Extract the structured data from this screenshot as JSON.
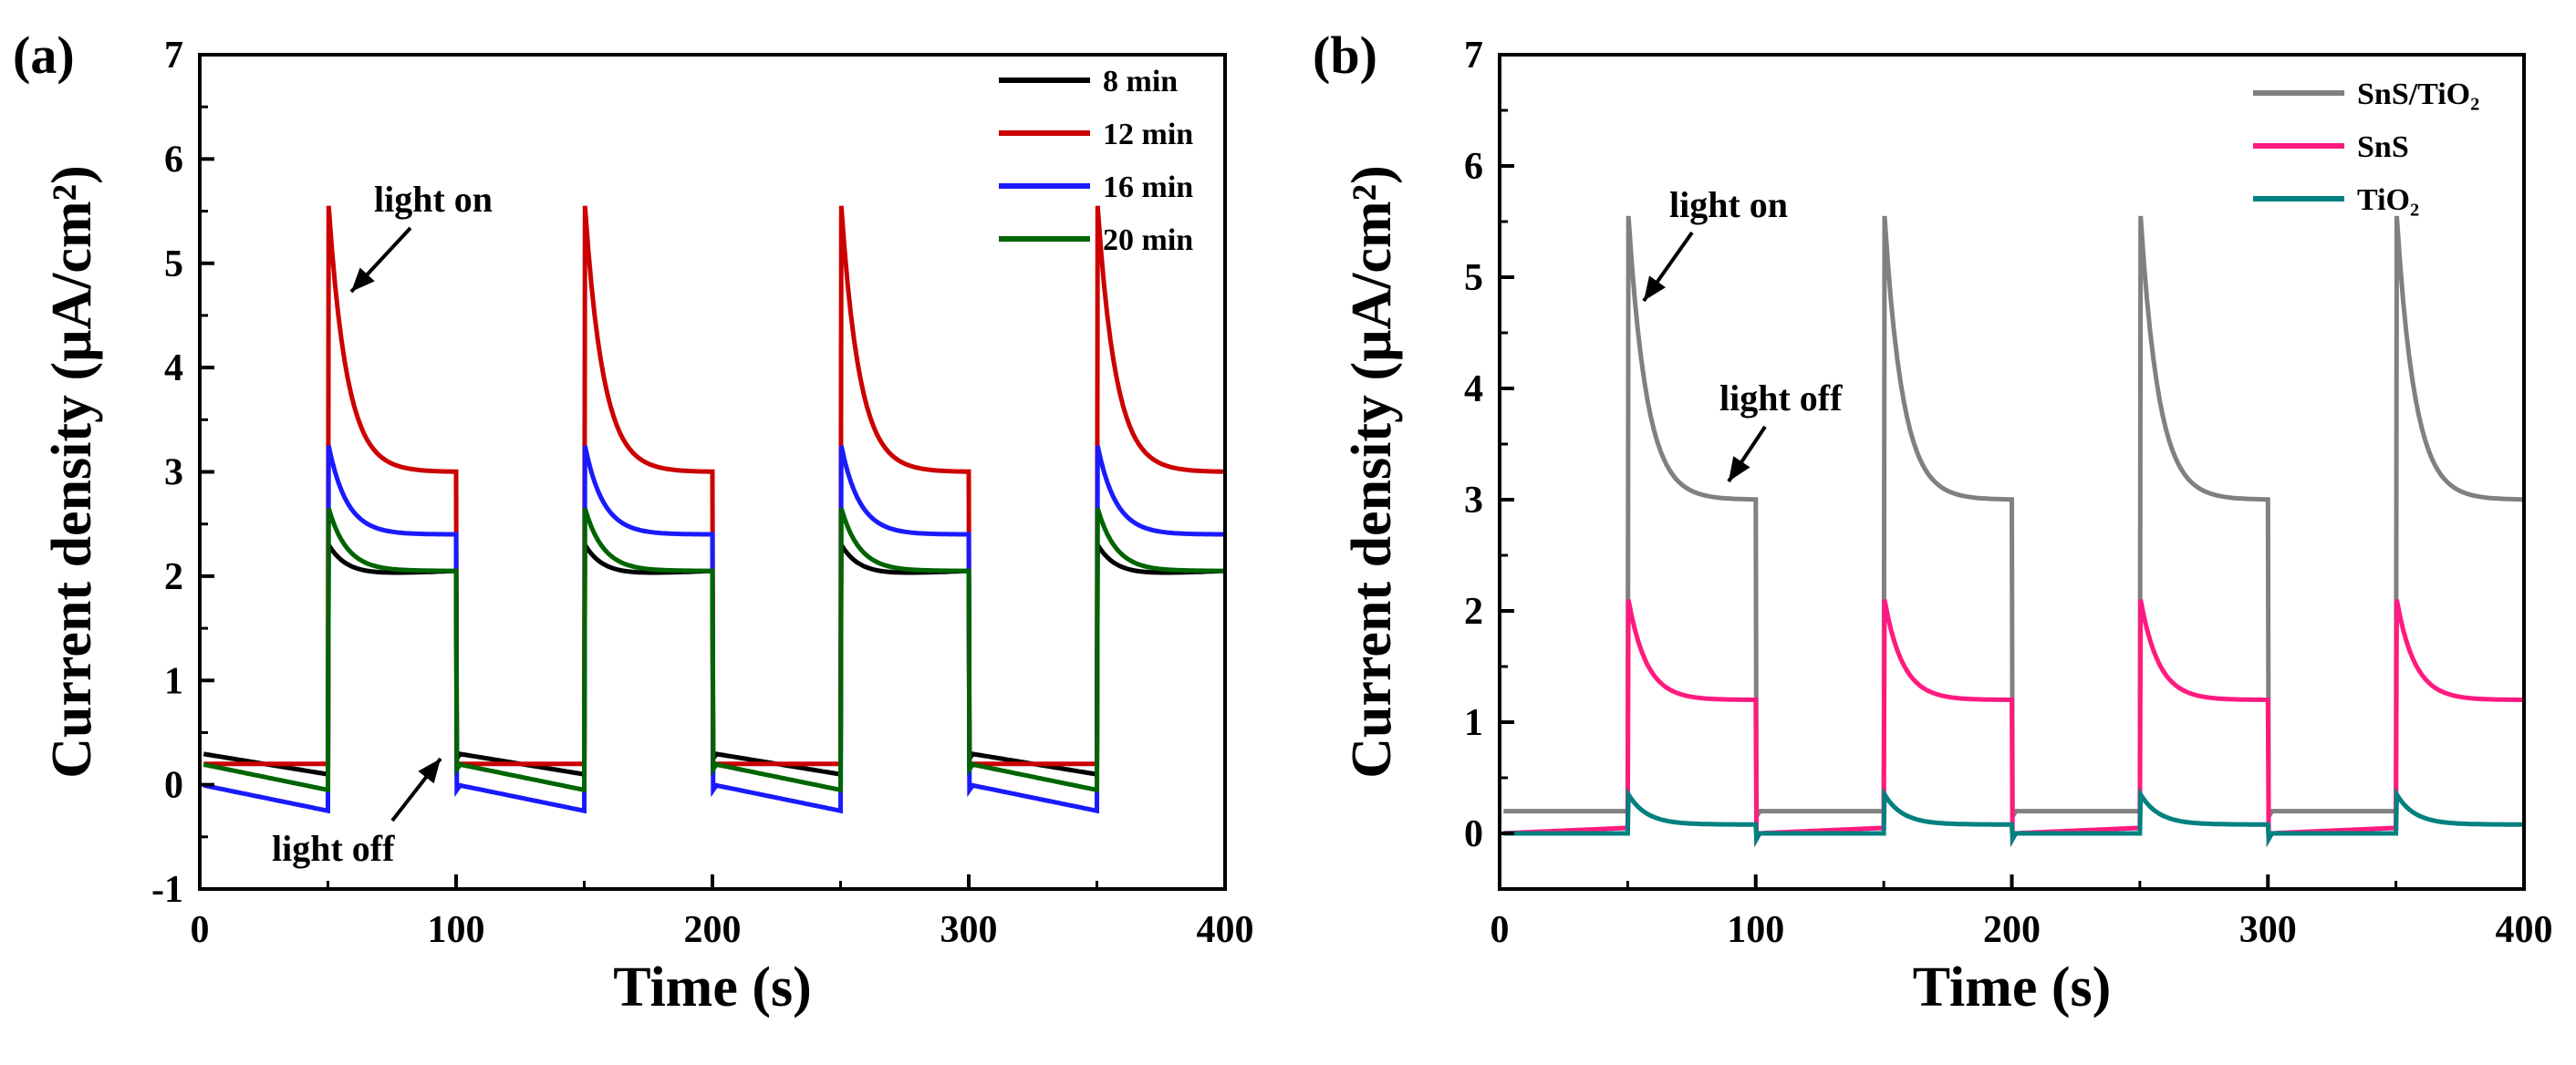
{
  "chart_data": [
    {
      "type": "line",
      "panel_label": "(a)",
      "title": "",
      "xlabel": "Time (s)",
      "ylabel": "Current density (μA/cm²)",
      "xlim": [
        0,
        400
      ],
      "ylim": [
        -1,
        7
      ],
      "xticks": [
        "0",
        "100",
        "200",
        "300",
        "400"
      ],
      "yticks": [
        "-1",
        "0",
        "1",
        "2",
        "3",
        "4",
        "5",
        "6",
        "7"
      ],
      "grid": false,
      "legend_position": "top-right",
      "light_period_s": 50,
      "series": [
        {
          "name": "8 min",
          "color": "#000000",
          "off_start": 0.3,
          "off_end": 0.1,
          "on_peak": 2.3,
          "on_end": 2.05,
          "on_dip": 2.0
        },
        {
          "name": "12 min",
          "color": "#cc0000",
          "off_start": 0.2,
          "off_end": 0.2,
          "on_peak": 5.55,
          "on_end": 3.0
        },
        {
          "name": "16 min",
          "color": "#1a1aff",
          "off_start": 0.0,
          "off_end": -0.25,
          "on_peak": 3.25,
          "on_end": 2.4
        },
        {
          "name": "20 min",
          "color": "#006400",
          "off_start": 0.2,
          "off_end": -0.05,
          "on_peak": 2.65,
          "on_end": 2.05
        }
      ],
      "annotations": [
        {
          "text": "light on",
          "at": [
            50,
            5.0
          ]
        },
        {
          "text": "light off",
          "at": [
            100,
            0.3
          ]
        }
      ]
    },
    {
      "type": "line",
      "panel_label": "(b)",
      "title": "",
      "xlabel": "Time (s)",
      "ylabel": "Current density (μA/cm²)",
      "xlim": [
        0,
        400
      ],
      "ylim": [
        -0.5,
        7
      ],
      "xticks": [
        "0",
        "100",
        "200",
        "300",
        "400"
      ],
      "yticks": [
        "0",
        "1",
        "2",
        "3",
        "4",
        "5",
        "6",
        "7"
      ],
      "grid": false,
      "legend_position": "top-right",
      "light_period_s": 50,
      "series": [
        {
          "name": "SnS/TiO₂",
          "color": "#808080",
          "off_start": 0.2,
          "off_end": 0.2,
          "on_peak": 5.55,
          "on_end": 3.0
        },
        {
          "name": "SnS",
          "color": "#ff1a80",
          "off_start": 0.0,
          "off_end": 0.05,
          "on_peak": 2.1,
          "on_end": 1.2
        },
        {
          "name": "TiO₂",
          "color": "#008080",
          "off_start": 0.0,
          "off_end": 0.0,
          "on_peak": 0.35,
          "on_end": 0.08
        }
      ],
      "annotations": [
        {
          "text": "light on",
          "at": [
            50,
            5.0
          ]
        },
        {
          "text": "light off",
          "at": [
            95,
            3.1
          ]
        }
      ]
    }
  ]
}
